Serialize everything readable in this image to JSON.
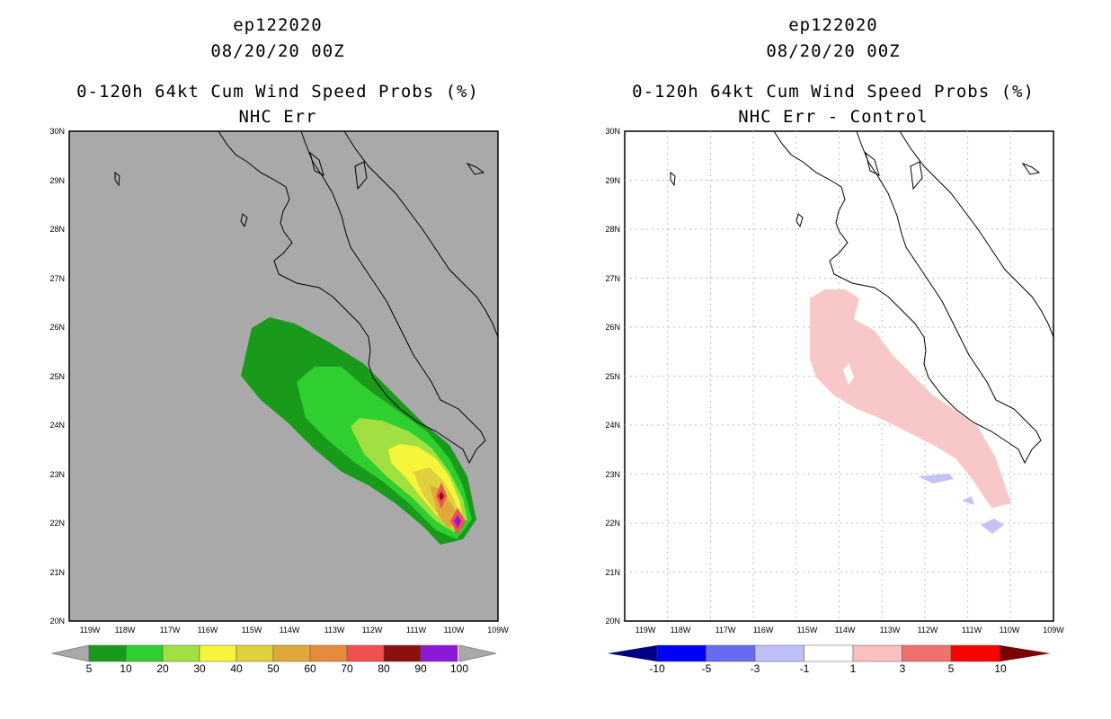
{
  "left": {
    "title_line1": "ep122020",
    "title_line2": "08/20/20 00Z",
    "title_line3": "0-120h 64kt Cum Wind Speed Probs (%)",
    "title_line4": "NHC Err",
    "background_color": "#a9a9a9",
    "colorbar": {
      "labels": [
        "5",
        "10",
        "20",
        "30",
        "40",
        "50",
        "60",
        "70",
        "80",
        "90",
        "100"
      ],
      "colors": [
        "#1a9a1a",
        "#2ecf2e",
        "#a0e040",
        "#f5f53c",
        "#e0d03c",
        "#e0a83c",
        "#e88a3c",
        "#f05050",
        "#8c1010",
        "#8c18d8"
      ]
    }
  },
  "right": {
    "title_line1": "ep122020",
    "title_line2": "08/20/20 00Z",
    "title_line3": "0-120h 64kt Cum Wind Speed Probs (%)",
    "title_line4": "NHC Err - Control",
    "background_color": "#ffffff",
    "colorbar": {
      "labels": [
        "-10",
        "-5",
        "-3",
        "-1",
        "1",
        "3",
        "5",
        "10"
      ],
      "colors": [
        "#000080",
        "#0000ff",
        "#6a6af0",
        "#c0c0f8",
        "#ffffff",
        "#f8c0c0",
        "#f07070",
        "#ff0000",
        "#7a0000"
      ]
    }
  },
  "lat_labels": [
    "30N",
    "29N",
    "28N",
    "27N",
    "26N",
    "25N",
    "24N",
    "23N",
    "22N",
    "21N",
    "20N"
  ],
  "lon_labels": [
    "119W",
    "118W",
    "117W",
    "116W",
    "115W",
    "114W",
    "113W",
    "112W",
    "111W",
    "110W",
    "109W"
  ]
}
